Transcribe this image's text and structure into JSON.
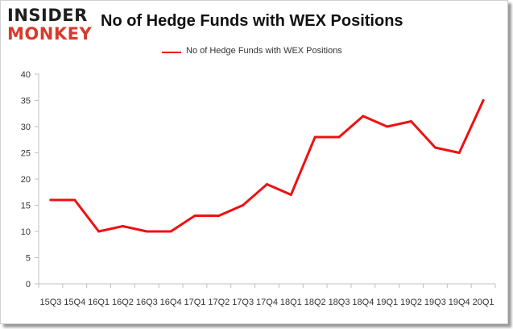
{
  "logo": {
    "line1": "INSIDER",
    "line2": "MONKEY"
  },
  "chart_data": {
    "type": "line",
    "title": "No of Hedge Funds with WEX Positions",
    "xlabel": "",
    "ylabel": "",
    "legend_position": "top-center",
    "grid": false,
    "ylim": [
      0,
      40
    ],
    "yticks": [
      0,
      5,
      10,
      15,
      20,
      25,
      30,
      35,
      40
    ],
    "categories": [
      "15Q3",
      "15Q4",
      "16Q1",
      "16Q2",
      "16Q3",
      "16Q4",
      "17Q1",
      "17Q2",
      "17Q3",
      "17Q4",
      "18Q1",
      "18Q2",
      "18Q3",
      "18Q4",
      "19Q1",
      "19Q2",
      "19Q3",
      "19Q4",
      "20Q1"
    ],
    "series": [
      {
        "name": "No of Hedge Funds with WEX Positions",
        "color": "#ee1111",
        "values": [
          16,
          16,
          10,
          11,
          10,
          10,
          13,
          13,
          15,
          19,
          17,
          28,
          28,
          32,
          30,
          31,
          26,
          25,
          35
        ]
      }
    ]
  }
}
